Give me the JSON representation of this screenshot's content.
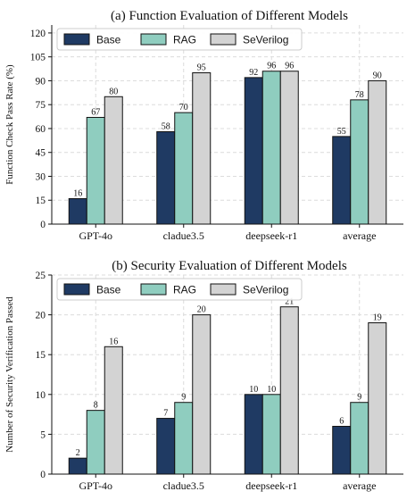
{
  "colors": {
    "base": "#1f3a63",
    "rag": "#8fcdbf",
    "severilog": "#d3d3d3",
    "grid": "#dcdcdc",
    "edge": "#111111"
  },
  "chart_data": [
    {
      "type": "bar",
      "title": "(a) Function Evaluation of Different Models",
      "ylabel": "Function Check Pass Rate (%)",
      "xlabel": "",
      "categories": [
        "GPT-4o",
        "cladue3.5",
        "deepseek-r1",
        "average"
      ],
      "series": [
        {
          "name": "Base",
          "values": [
            16,
            58,
            92,
            55
          ]
        },
        {
          "name": "RAG",
          "values": [
            67,
            70,
            96,
            78
          ]
        },
        {
          "name": "SeVerilog",
          "values": [
            80,
            95,
            96,
            90
          ]
        }
      ],
      "ylim": [
        0,
        125
      ],
      "yticks": [
        0,
        15,
        30,
        45,
        60,
        75,
        90,
        105,
        120
      ],
      "grid": true,
      "legend": "top-left"
    },
    {
      "type": "bar",
      "title": "(b) Security Evaluation of Different Models",
      "ylabel": "Number of Security Verification Passed",
      "xlabel": "",
      "categories": [
        "GPT-4o",
        "cladue3.5",
        "deepseek-r1",
        "average"
      ],
      "series": [
        {
          "name": "Base",
          "values": [
            2,
            7,
            10,
            6
          ]
        },
        {
          "name": "RAG",
          "values": [
            8,
            9,
            10,
            9
          ]
        },
        {
          "name": "SeVerilog",
          "values": [
            16,
            20,
            21,
            19
          ]
        }
      ],
      "ylim": [
        0,
        25
      ],
      "yticks": [
        0,
        5,
        10,
        15,
        20,
        25
      ],
      "grid": true,
      "legend": "top-left"
    }
  ]
}
